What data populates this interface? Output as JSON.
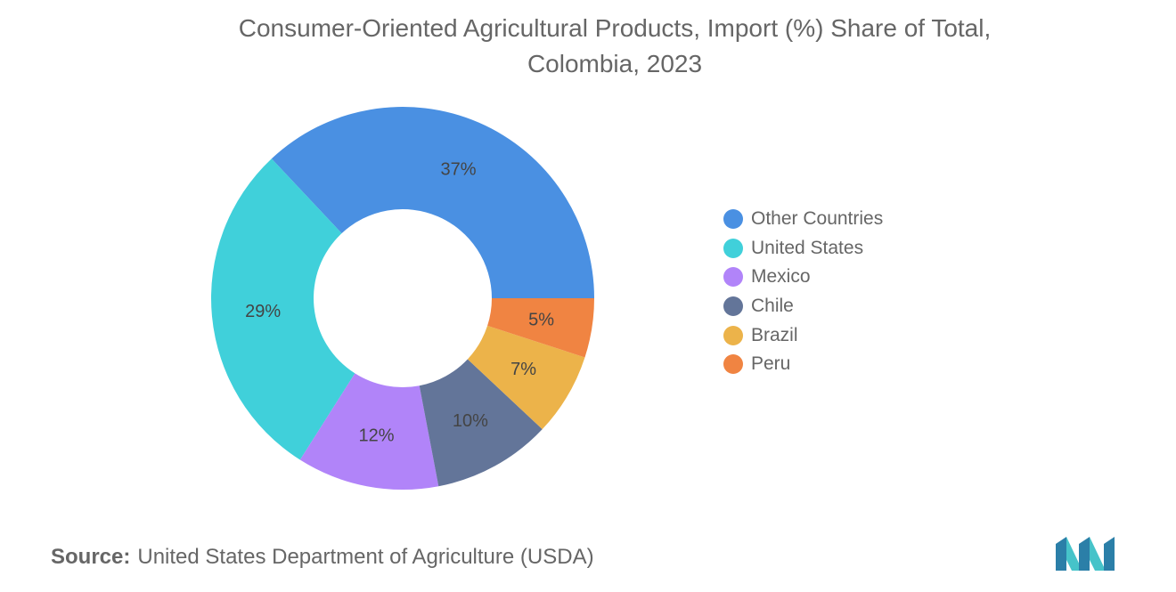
{
  "title_line1": "Consumer-Oriented Agricultural Products, Import (%) Share of Total,",
  "title_line2": "Colombia, 2023",
  "source_label": "Source:",
  "source_text": "United States Department of Agriculture (USDA)",
  "logo_name": "mordor-intelligence-logo",
  "chart_data": {
    "type": "pie",
    "subtype": "donut",
    "title": "Consumer-Oriented Agricultural Products, Import (%) Share of Total, Colombia, 2023",
    "categories": [
      "Other Countries",
      "United States",
      "Mexico",
      "Chile",
      "Brazil",
      "Peru"
    ],
    "values": [
      37,
      29,
      12,
      10,
      7,
      5
    ],
    "data_labels": [
      "37%",
      "29%",
      "12%",
      "10%",
      "7%",
      "5%"
    ],
    "colors": [
      "#4a90e2",
      "#40d0da",
      "#b184f9",
      "#637599",
      "#ecb34a",
      "#f08442"
    ],
    "legend_position": "right",
    "unit": "%"
  }
}
